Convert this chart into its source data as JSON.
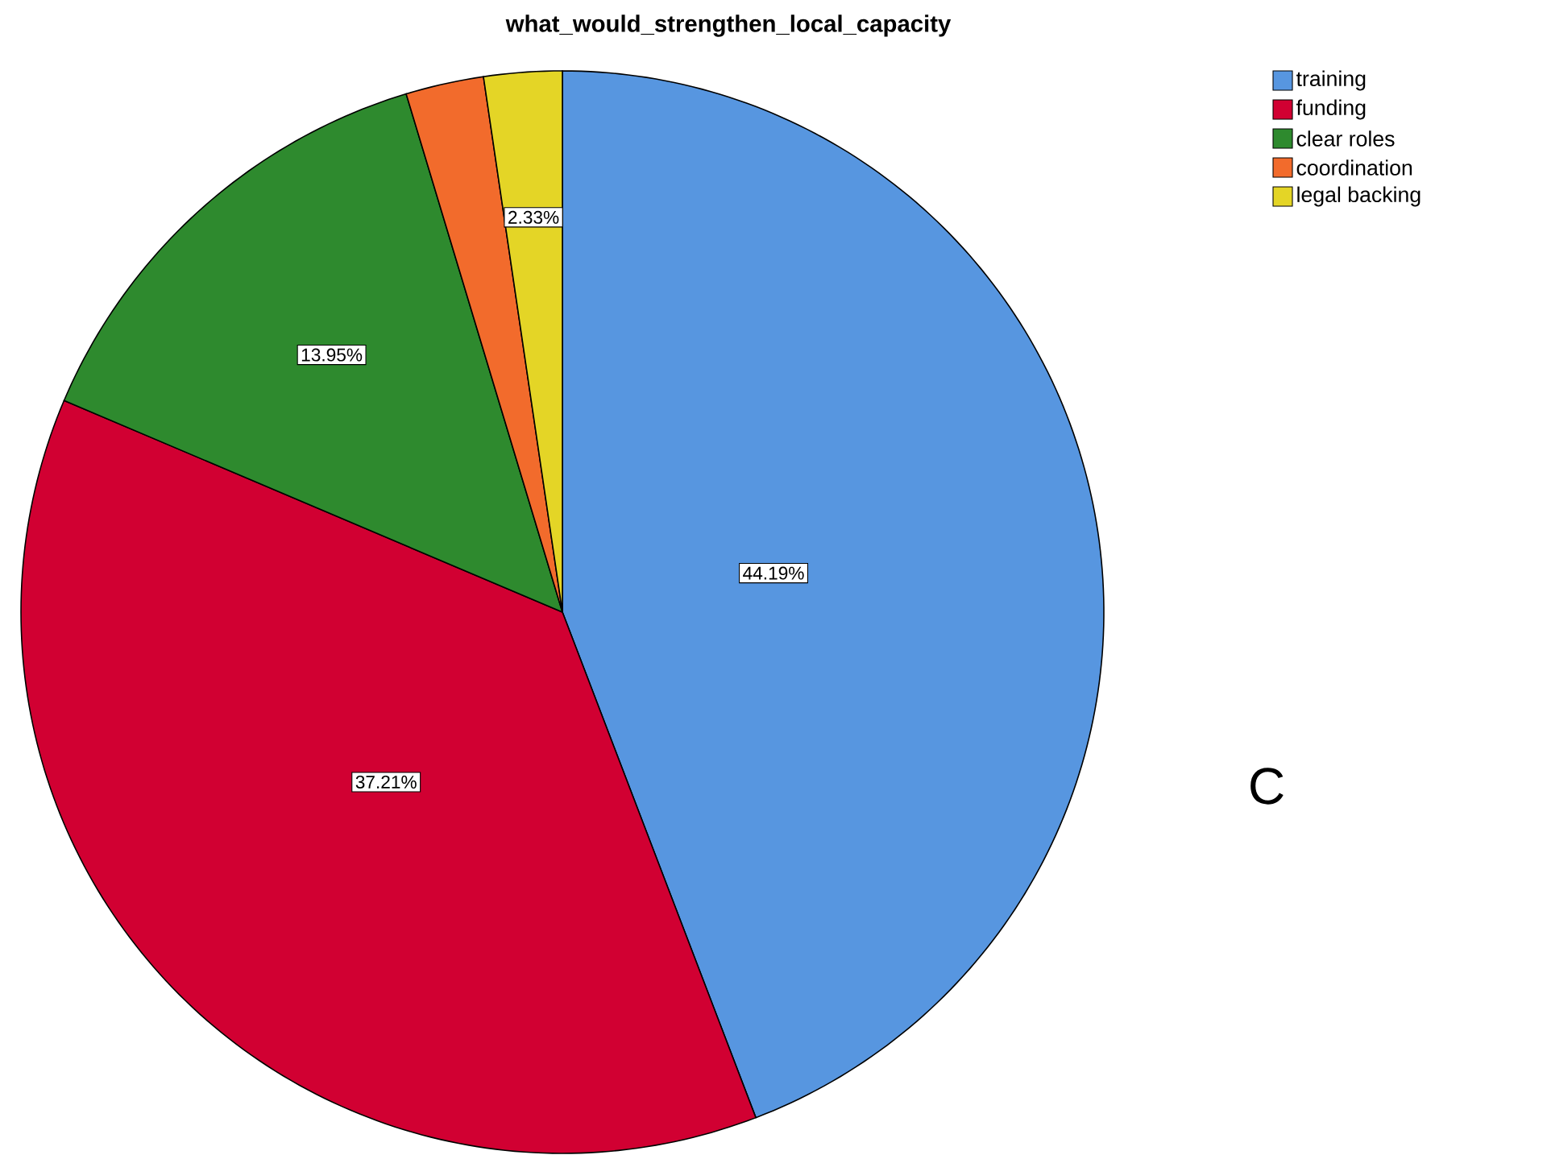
{
  "chart_data": {
    "type": "pie",
    "title": "what_would_strengthen_local_capacity",
    "categories": [
      "training",
      "funding",
      "clear roles",
      "coordination",
      "legal backing"
    ],
    "values": [
      44.19,
      37.21,
      13.95,
      2.33,
      2.33
    ],
    "colors": [
      "#5796e0",
      "#d10032",
      "#2e8a2e",
      "#f26b2c",
      "#e4d526"
    ],
    "value_labels": [
      "44.19%",
      "37.21%",
      "13.95%",
      null,
      "2.33%"
    ],
    "legend": "top right",
    "annotations": [
      "C"
    ]
  }
}
